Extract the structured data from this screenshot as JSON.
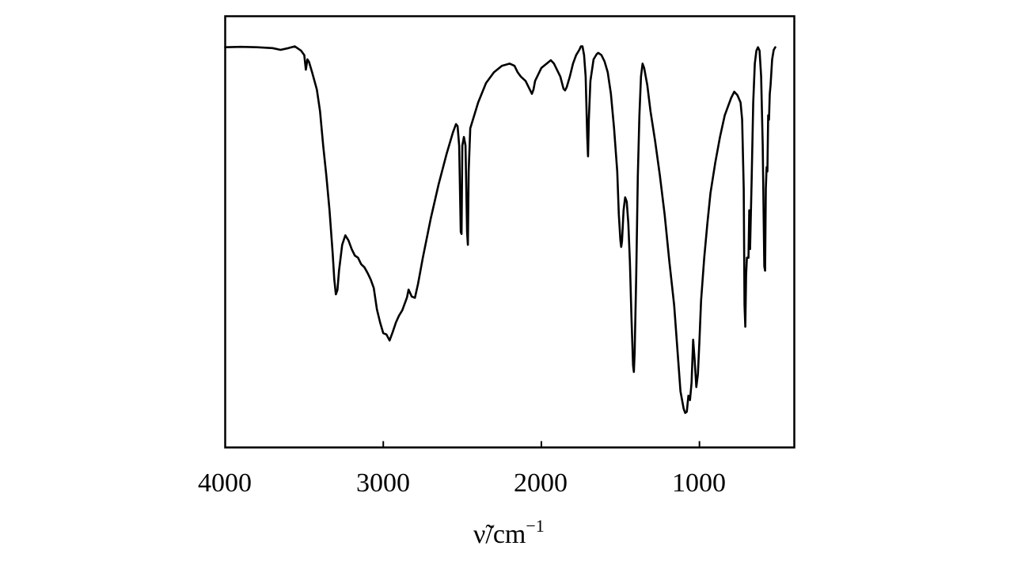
{
  "chart_data": {
    "type": "line",
    "title": "",
    "xlabel": "ν̃/cm",
    "xlabel_exponent": "−1",
    "ylabel": "",
    "xlim": [
      4000,
      400
    ],
    "x_reversed": true,
    "ylim": [
      0,
      1
    ],
    "grid": false,
    "legend": "none",
    "line_color": "#000000",
    "x_ticks": [
      {
        "value": 4000,
        "label": "4000"
      },
      {
        "value": 3000,
        "label": "3000"
      },
      {
        "value": 2000,
        "label": "2000"
      },
      {
        "value": 1000,
        "label": "1000"
      }
    ],
    "series": [
      {
        "points": [
          [
            4000,
            0.928
          ],
          [
            3900,
            0.929
          ],
          [
            3800,
            0.928
          ],
          [
            3700,
            0.926
          ],
          [
            3650,
            0.922
          ],
          [
            3600,
            0.926
          ],
          [
            3560,
            0.93
          ],
          [
            3520,
            0.92
          ],
          [
            3500,
            0.91
          ],
          [
            3490,
            0.876
          ],
          [
            3480,
            0.9
          ],
          [
            3470,
            0.894
          ],
          [
            3450,
            0.87
          ],
          [
            3420,
            0.83
          ],
          [
            3400,
            0.78
          ],
          [
            3380,
            0.7
          ],
          [
            3360,
            0.63
          ],
          [
            3340,
            0.55
          ],
          [
            3320,
            0.45
          ],
          [
            3310,
            0.39
          ],
          [
            3300,
            0.355
          ],
          [
            3290,
            0.365
          ],
          [
            3280,
            0.41
          ],
          [
            3260,
            0.47
          ],
          [
            3240,
            0.492
          ],
          [
            3220,
            0.48
          ],
          [
            3200,
            0.46
          ],
          [
            3180,
            0.445
          ],
          [
            3160,
            0.44
          ],
          [
            3140,
            0.425
          ],
          [
            3120,
            0.418
          ],
          [
            3100,
            0.405
          ],
          [
            3080,
            0.39
          ],
          [
            3060,
            0.37
          ],
          [
            3040,
            0.32
          ],
          [
            3020,
            0.29
          ],
          [
            3000,
            0.265
          ],
          [
            2980,
            0.262
          ],
          [
            2960,
            0.248
          ],
          [
            2940,
            0.268
          ],
          [
            2920,
            0.29
          ],
          [
            2900,
            0.306
          ],
          [
            2880,
            0.318
          ],
          [
            2860,
            0.338
          ],
          [
            2850,
            0.348
          ],
          [
            2840,
            0.366
          ],
          [
            2820,
            0.35
          ],
          [
            2800,
            0.347
          ],
          [
            2780,
            0.38
          ],
          [
            2750,
            0.44
          ],
          [
            2700,
            0.53
          ],
          [
            2650,
            0.61
          ],
          [
            2600,
            0.68
          ],
          [
            2560,
            0.73
          ],
          [
            2540,
            0.75
          ],
          [
            2530,
            0.745
          ],
          [
            2520,
            0.7
          ],
          [
            2510,
            0.5
          ],
          [
            2505,
            0.495
          ],
          [
            2500,
            0.7
          ],
          [
            2490,
            0.72
          ],
          [
            2480,
            0.7
          ],
          [
            2470,
            0.5
          ],
          [
            2465,
            0.47
          ],
          [
            2460,
            0.64
          ],
          [
            2450,
            0.74
          ],
          [
            2400,
            0.8
          ],
          [
            2350,
            0.845
          ],
          [
            2300,
            0.87
          ],
          [
            2250,
            0.885
          ],
          [
            2200,
            0.89
          ],
          [
            2170,
            0.885
          ],
          [
            2150,
            0.87
          ],
          [
            2130,
            0.86
          ],
          [
            2100,
            0.85
          ],
          [
            2080,
            0.835
          ],
          [
            2060,
            0.82
          ],
          [
            2050,
            0.83
          ],
          [
            2040,
            0.85
          ],
          [
            2000,
            0.88
          ],
          [
            1960,
            0.892
          ],
          [
            1940,
            0.898
          ],
          [
            1920,
            0.89
          ],
          [
            1880,
            0.86
          ],
          [
            1860,
            0.832
          ],
          [
            1850,
            0.828
          ],
          [
            1840,
            0.835
          ],
          [
            1820,
            0.86
          ],
          [
            1800,
            0.89
          ],
          [
            1780,
            0.91
          ],
          [
            1760,
            0.922
          ],
          [
            1750,
            0.93
          ],
          [
            1740,
            0.93
          ],
          [
            1730,
            0.91
          ],
          [
            1720,
            0.86
          ],
          [
            1710,
            0.72
          ],
          [
            1705,
            0.675
          ],
          [
            1700,
            0.76
          ],
          [
            1690,
            0.85
          ],
          [
            1670,
            0.9
          ],
          [
            1650,
            0.912
          ],
          [
            1640,
            0.915
          ],
          [
            1620,
            0.91
          ],
          [
            1600,
            0.895
          ],
          [
            1580,
            0.87
          ],
          [
            1560,
            0.82
          ],
          [
            1540,
            0.74
          ],
          [
            1520,
            0.64
          ],
          [
            1510,
            0.54
          ],
          [
            1500,
            0.48
          ],
          [
            1495,
            0.465
          ],
          [
            1490,
            0.478
          ],
          [
            1480,
            0.55
          ],
          [
            1470,
            0.58
          ],
          [
            1460,
            0.57
          ],
          [
            1450,
            0.52
          ],
          [
            1440,
            0.43
          ],
          [
            1430,
            0.3
          ],
          [
            1420,
            0.19
          ],
          [
            1415,
            0.175
          ],
          [
            1410,
            0.22
          ],
          [
            1400,
            0.4
          ],
          [
            1390,
            0.63
          ],
          [
            1380,
            0.77
          ],
          [
            1370,
            0.86
          ],
          [
            1360,
            0.89
          ],
          [
            1350,
            0.88
          ],
          [
            1330,
            0.84
          ],
          [
            1310,
            0.78
          ],
          [
            1280,
            0.71
          ],
          [
            1250,
            0.63
          ],
          [
            1220,
            0.54
          ],
          [
            1190,
            0.43
          ],
          [
            1160,
            0.33
          ],
          [
            1140,
            0.23
          ],
          [
            1120,
            0.13
          ],
          [
            1100,
            0.09
          ],
          [
            1090,
            0.08
          ],
          [
            1080,
            0.083
          ],
          [
            1070,
            0.12
          ],
          [
            1060,
            0.11
          ],
          [
            1050,
            0.15
          ],
          [
            1040,
            0.25
          ],
          [
            1030,
            0.2
          ],
          [
            1020,
            0.14
          ],
          [
            1010,
            0.17
          ],
          [
            1000,
            0.25
          ],
          [
            990,
            0.34
          ],
          [
            970,
            0.44
          ],
          [
            950,
            0.52
          ],
          [
            930,
            0.59
          ],
          [
            900,
            0.66
          ],
          [
            870,
            0.72
          ],
          [
            840,
            0.77
          ],
          [
            800,
            0.81
          ],
          [
            780,
            0.825
          ],
          [
            760,
            0.817
          ],
          [
            740,
            0.8
          ],
          [
            730,
            0.76
          ],
          [
            720,
            0.6
          ],
          [
            715,
            0.33
          ],
          [
            710,
            0.28
          ],
          [
            705,
            0.4
          ],
          [
            700,
            0.44
          ],
          [
            690,
            0.44
          ],
          [
            685,
            0.55
          ],
          [
            680,
            0.46
          ],
          [
            670,
            0.62
          ],
          [
            660,
            0.8
          ],
          [
            650,
            0.89
          ],
          [
            640,
            0.92
          ],
          [
            630,
            0.928
          ],
          [
            620,
            0.92
          ],
          [
            610,
            0.86
          ],
          [
            600,
            0.7
          ],
          [
            590,
            0.42
          ],
          [
            585,
            0.41
          ],
          [
            580,
            0.6
          ],
          [
            575,
            0.65
          ],
          [
            570,
            0.64
          ],
          [
            565,
            0.77
          ],
          [
            560,
            0.76
          ],
          [
            555,
            0.82
          ],
          [
            550,
            0.84
          ],
          [
            540,
            0.9
          ],
          [
            530,
            0.922
          ],
          [
            520,
            0.928
          ]
        ]
      }
    ]
  }
}
